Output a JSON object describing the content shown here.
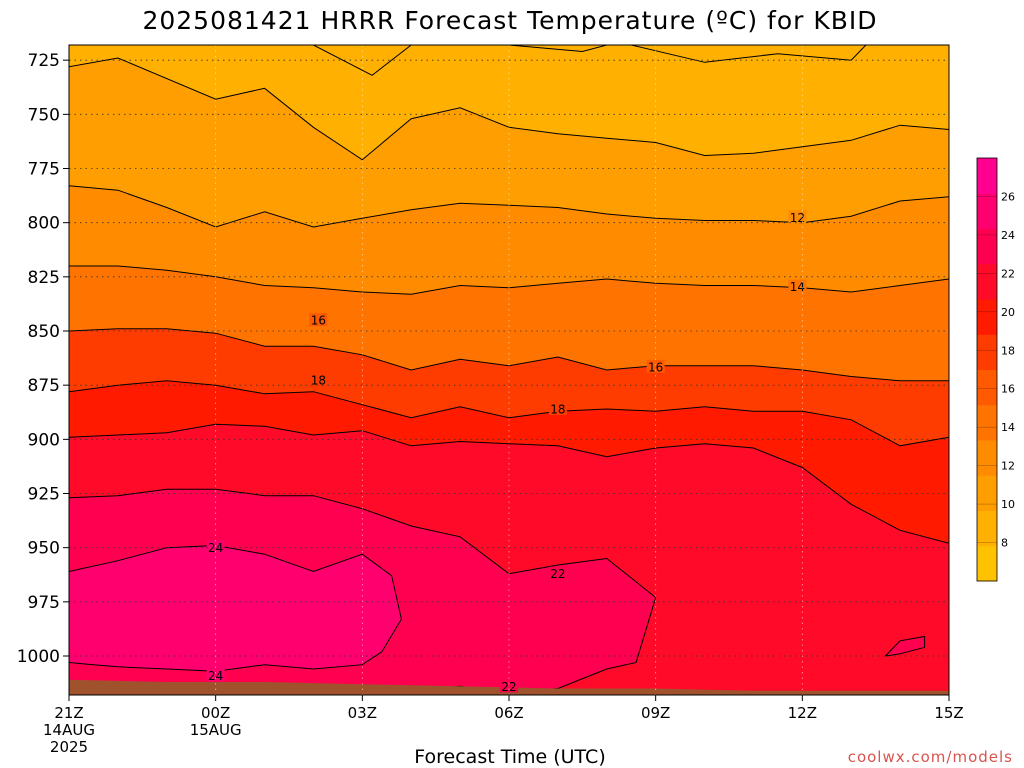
{
  "chart_data": {
    "type": "heatmap",
    "title": "2025081421 HRRR Forecast Temperature (ºC) for KBID",
    "xlabel": "Forecast Time (UTC)",
    "ylabel": "",
    "credit": "coolwx.com/models",
    "x_ticks": [
      {
        "hour": 0,
        "lines": [
          "21Z",
          "14AUG",
          "2025"
        ]
      },
      {
        "hour": 3,
        "lines": [
          "00Z",
          "15AUG"
        ]
      },
      {
        "hour": 6,
        "lines": [
          "03Z"
        ]
      },
      {
        "hour": 9,
        "lines": [
          "06Z"
        ]
      },
      {
        "hour": 12,
        "lines": [
          "09Z"
        ]
      },
      {
        "hour": 15,
        "lines": [
          "12Z"
        ]
      },
      {
        "hour": 18,
        "lines": [
          "15Z"
        ]
      }
    ],
    "xlim": [
      0,
      18
    ],
    "y_ticks": [
      725,
      750,
      775,
      800,
      825,
      850,
      875,
      900,
      925,
      950,
      975,
      1000
    ],
    "ylim": [
      1018,
      718
    ],
    "y_scale": "linear (pressure, hPa, inverted)",
    "grid": true,
    "colorbar": {
      "labels": [
        8,
        10,
        12,
        14,
        16,
        18,
        20,
        22,
        24,
        26
      ],
      "range": [
        6,
        28
      ],
      "colors": [
        "#ffc200",
        "#ffb000",
        "#ff9e00",
        "#ff8c00",
        "#ff7400",
        "#ff5a00",
        "#ff3c00",
        "#ff1a00",
        "#ff0a28",
        "#ff0050",
        "#ff006e",
        "#ff0090"
      ],
      "placement": "right"
    },
    "ground_color": "#a0522d",
    "contours": [
      {
        "level": 10,
        "points": [
          [
            0,
            728
          ],
          [
            1,
            724
          ],
          [
            3,
            743
          ],
          [
            4,
            738
          ],
          [
            5,
            756
          ],
          [
            6,
            771
          ],
          [
            7,
            752
          ],
          [
            8,
            747
          ],
          [
            9,
            756
          ],
          [
            10,
            759
          ],
          [
            11,
            761
          ],
          [
            12,
            763
          ],
          [
            13,
            769
          ],
          [
            14,
            768
          ],
          [
            15,
            765
          ],
          [
            16,
            762
          ],
          [
            17,
            755
          ],
          [
            18,
            757
          ]
        ]
      },
      {
        "level": 12,
        "points": [
          [
            0,
            783
          ],
          [
            1,
            785
          ],
          [
            2,
            793
          ],
          [
            3,
            802
          ],
          [
            4,
            795
          ],
          [
            5,
            802
          ],
          [
            6,
            798
          ],
          [
            7,
            794
          ],
          [
            8,
            791
          ],
          [
            9,
            792
          ],
          [
            10,
            793
          ],
          [
            11,
            796
          ],
          [
            12,
            798
          ],
          [
            13,
            799
          ],
          [
            14,
            799
          ],
          [
            15,
            800
          ],
          [
            16,
            797
          ],
          [
            17,
            790
          ],
          [
            18,
            788
          ]
        ]
      },
      {
        "level": 14,
        "points": [
          [
            0,
            820
          ],
          [
            1,
            820
          ],
          [
            2,
            822
          ],
          [
            3,
            825
          ],
          [
            4,
            829
          ],
          [
            5,
            830
          ],
          [
            6,
            832
          ],
          [
            7,
            833
          ],
          [
            8,
            829
          ],
          [
            9,
            830
          ],
          [
            10,
            828
          ],
          [
            11,
            826
          ],
          [
            12,
            828
          ],
          [
            13,
            829
          ],
          [
            14,
            829
          ],
          [
            15,
            830
          ],
          [
            16,
            832
          ],
          [
            17,
            829
          ],
          [
            18,
            826
          ]
        ]
      },
      {
        "level": 16,
        "points": [
          [
            0,
            850
          ],
          [
            1,
            849
          ],
          [
            2,
            849
          ],
          [
            3,
            851
          ],
          [
            4,
            857
          ],
          [
            5,
            857
          ],
          [
            6,
            861
          ],
          [
            7,
            868
          ],
          [
            8,
            863
          ],
          [
            9,
            866
          ],
          [
            10,
            862
          ],
          [
            11,
            868
          ],
          [
            12,
            866
          ],
          [
            13,
            866
          ],
          [
            14,
            866
          ],
          [
            15,
            868
          ],
          [
            16,
            871
          ],
          [
            17,
            873
          ],
          [
            18,
            873
          ]
        ]
      },
      {
        "level": 18,
        "points": [
          [
            0,
            878
          ],
          [
            1,
            875
          ],
          [
            2,
            873
          ],
          [
            3,
            875
          ],
          [
            4,
            879
          ],
          [
            5,
            878
          ],
          [
            6,
            884
          ],
          [
            7,
            890
          ],
          [
            8,
            885
          ],
          [
            9,
            890
          ],
          [
            10,
            887
          ],
          [
            11,
            886
          ],
          [
            12,
            887
          ],
          [
            13,
            885
          ],
          [
            14,
            887
          ],
          [
            15,
            887
          ],
          [
            16,
            891
          ],
          [
            17,
            903
          ],
          [
            18,
            899
          ]
        ]
      },
      {
        "level": 20,
        "points": [
          [
            0,
            899
          ],
          [
            1,
            898
          ],
          [
            2,
            897
          ],
          [
            3,
            893
          ],
          [
            4,
            894
          ],
          [
            5,
            898
          ],
          [
            6,
            896
          ],
          [
            7,
            903
          ],
          [
            8,
            901
          ],
          [
            9,
            902
          ],
          [
            10,
            903
          ],
          [
            11,
            908
          ],
          [
            12,
            904
          ],
          [
            13,
            902
          ],
          [
            14,
            904
          ],
          [
            15,
            913
          ],
          [
            16,
            930
          ],
          [
            17,
            942
          ],
          [
            18,
            948
          ],
          [
            18,
            1017
          ]
        ]
      },
      {
        "level": 22,
        "points": [
          [
            0,
            927
          ],
          [
            1,
            926
          ],
          [
            2,
            923
          ],
          [
            3,
            923
          ],
          [
            4,
            926
          ],
          [
            5,
            926
          ],
          [
            6,
            932
          ],
          [
            7,
            940
          ],
          [
            8,
            945
          ],
          [
            9,
            962
          ],
          [
            10,
            958
          ],
          [
            11,
            955
          ],
          [
            12,
            973
          ],
          [
            11.6,
            1003
          ],
          [
            11,
            1006
          ],
          [
            10,
            1015
          ],
          [
            9,
            1017
          ],
          [
            8,
            1014
          ],
          [
            6,
            1018
          ]
        ]
      },
      {
        "level": 24,
        "points": [
          [
            0,
            961
          ],
          [
            1,
            956
          ],
          [
            2,
            950
          ],
          [
            3,
            949
          ],
          [
            4,
            953
          ],
          [
            5,
            961
          ],
          [
            6,
            953
          ],
          [
            6.6,
            963
          ],
          [
            6.8,
            983
          ],
          [
            6.4,
            998
          ],
          [
            6,
            1004
          ],
          [
            5,
            1006
          ],
          [
            4,
            1004
          ],
          [
            3,
            1007
          ],
          [
            2,
            1006
          ],
          [
            1,
            1005
          ],
          [
            0.5,
            1004
          ],
          [
            0,
            1003
          ]
        ]
      },
      {
        "level": 23,
        "points": [
          [
            16.7,
            1000
          ],
          [
            17,
            993
          ],
          [
            17.5,
            991
          ],
          [
            17.5,
            996
          ],
          [
            17,
            999
          ],
          [
            16.7,
            1000
          ]
        ]
      }
    ],
    "contour_labels": [
      {
        "text": "12",
        "hour": 14.9,
        "p": 797.5
      },
      {
        "text": "14",
        "hour": 14.9,
        "p": 829.5
      },
      {
        "text": "16",
        "hour": 5.1,
        "p": 845
      },
      {
        "text": "16",
        "hour": 12.0,
        "p": 866.5
      },
      {
        "text": "18",
        "hour": 5.1,
        "p": 872.5
      },
      {
        "text": "18",
        "hour": 10.0,
        "p": 886
      },
      {
        "text": "24",
        "hour": 3.0,
        "p": 950
      },
      {
        "text": "24",
        "hour": 3.0,
        "p": 1009
      },
      {
        "text": "22",
        "hour": 10.0,
        "p": 962
      },
      {
        "text": "22",
        "hour": 9.0,
        "p": 1014
      }
    ]
  }
}
